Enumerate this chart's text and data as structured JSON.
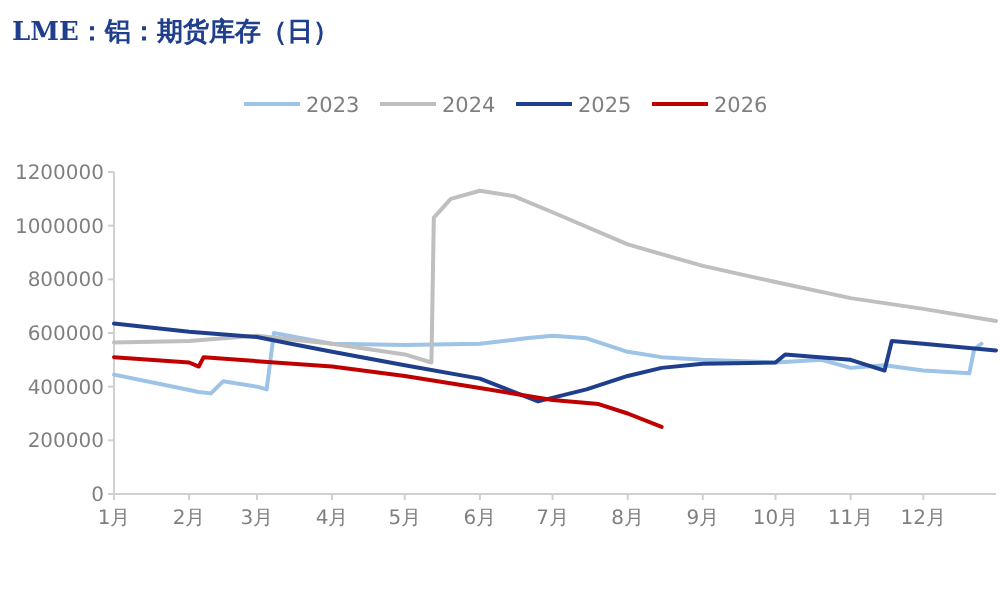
{
  "chart_data": {
    "type": "line",
    "title": "LME：铝：期货库存（日）",
    "legend": "top",
    "xlim": [
      "--01-01",
      "--12-31"
    ],
    "xticks": [
      {
        "value": "--01-01",
        "label": "1月"
      },
      {
        "value": "--02-01",
        "label": "2月"
      },
      {
        "value": "--03-01",
        "label": "3月"
      },
      {
        "value": "--04-01",
        "label": "4月"
      },
      {
        "value": "--05-01",
        "label": "5月"
      },
      {
        "value": "--06-01",
        "label": "6月"
      },
      {
        "value": "--07-01",
        "label": "7月"
      },
      {
        "value": "--08-01",
        "label": "8月"
      },
      {
        "value": "--09-01",
        "label": "9月"
      },
      {
        "value": "--10-01",
        "label": "10月"
      },
      {
        "value": "--11-01",
        "label": "11月"
      },
      {
        "value": "--12-01",
        "label": "12月"
      }
    ],
    "ylim": [
      0,
      1200000
    ],
    "yticks": [
      0,
      200000,
      400000,
      600000,
      800000,
      1000000,
      1200000
    ],
    "series": [
      {
        "name": "2023",
        "color": "#9dc3e6",
        "x": [
          "--01-01",
          "--01-20",
          "--02-05",
          "--02-10",
          "--02-15",
          "--03-01",
          "--03-05",
          "--03-08",
          "--03-20",
          "--04-01",
          "--05-01",
          "--06-01",
          "--06-20",
          "--07-01",
          "--07-15",
          "--08-01",
          "--08-15",
          "--09-01",
          "--10-01",
          "--10-20",
          "--11-01",
          "--11-15",
          "--12-01",
          "--12-20",
          "--12-22",
          "--12-25"
        ],
        "values": [
          445000,
          410000,
          380000,
          375000,
          420000,
          400000,
          390000,
          600000,
          580000,
          560000,
          555000,
          560000,
          580000,
          590000,
          580000,
          530000,
          510000,
          500000,
          490000,
          500000,
          470000,
          480000,
          460000,
          450000,
          540000,
          560000
        ]
      },
      {
        "name": "2024",
        "color": "#bfbfbf",
        "x": [
          "--01-01",
          "--02-01",
          "--03-01",
          "--04-01",
          "--05-01",
          "--05-12",
          "--05-13",
          "--05-20",
          "--06-01",
          "--06-15",
          "--07-01",
          "--08-01",
          "--09-01",
          "--10-01",
          "--11-01",
          "--12-01",
          "--12-31"
        ],
        "values": [
          565000,
          570000,
          590000,
          560000,
          520000,
          490000,
          1030000,
          1100000,
          1130000,
          1110000,
          1050000,
          930000,
          850000,
          790000,
          730000,
          690000,
          645000
        ]
      },
      {
        "name": "2025",
        "color": "#1f3f8c",
        "x": [
          "--01-01",
          "--02-01",
          "--03-01",
          "--03-15",
          "--04-01",
          "--05-01",
          "--06-01",
          "--06-25",
          "--07-15",
          "--08-01",
          "--08-15",
          "--09-01",
          "--10-01",
          "--10-05",
          "--11-01",
          "--11-15",
          "--11-18",
          "--12-01",
          "--12-31"
        ],
        "values": [
          635000,
          605000,
          585000,
          560000,
          530000,
          480000,
          430000,
          345000,
          390000,
          440000,
          470000,
          485000,
          490000,
          520000,
          500000,
          460000,
          570000,
          560000,
          535000
        ]
      },
      {
        "name": "2026",
        "color": "#c00000",
        "x": [
          "--01-01",
          "--02-01",
          "--02-05",
          "--02-07",
          "--03-01",
          "--04-01",
          "--05-01",
          "--06-01",
          "--07-01",
          "--07-20",
          "--08-01",
          "--08-15"
        ],
        "values": [
          510000,
          490000,
          475000,
          510000,
          495000,
          475000,
          440000,
          395000,
          350000,
          335000,
          300000,
          250000
        ]
      }
    ]
  }
}
